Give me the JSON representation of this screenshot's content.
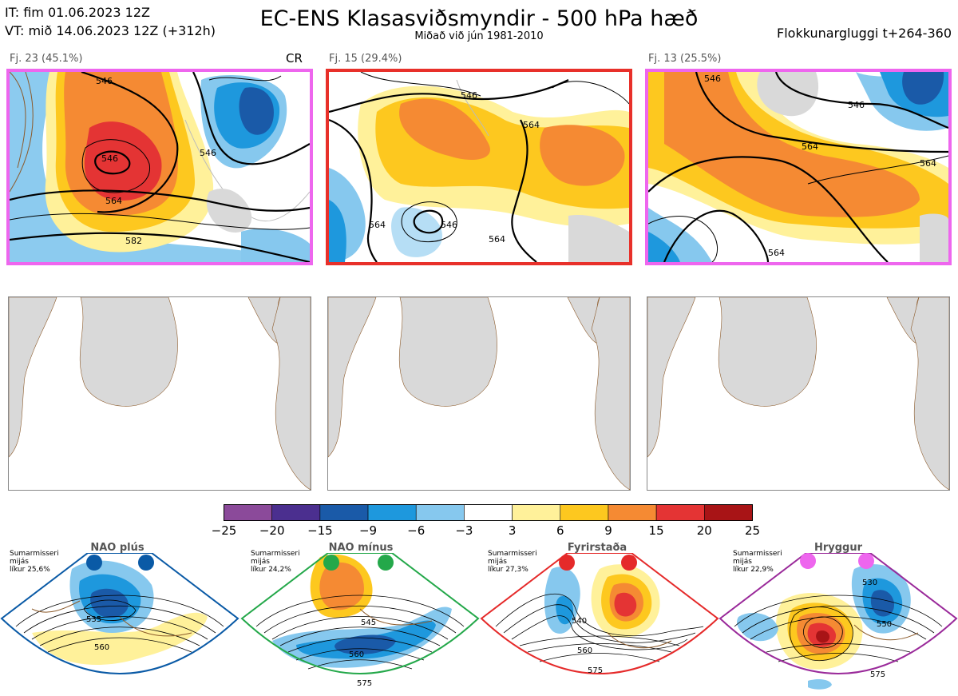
{
  "header": {
    "it_line": "IT: fim 01.06.2023 12Z",
    "vt_line": "VT: mið 14.06.2023 12Z  (+312h)",
    "title": "EC-ENS Klasasviðsmyndir - 500 hPa hæð",
    "subtitle": "Miðað við jún 1981-2010",
    "window": "Flokkunargluggi t+264-360"
  },
  "clusters": [
    {
      "label": "Fj. 23 (45.1%)",
      "tag": "CR",
      "border_color": "#ee66ee",
      "contours": [
        "546",
        "546",
        "546",
        "564",
        "582"
      ]
    },
    {
      "label": "Fj. 15 (29.4%)",
      "tag": "",
      "border_color": "#e8302a",
      "contours": [
        "546",
        "546",
        "564",
        "564",
        "564"
      ]
    },
    {
      "label": "Fj. 13 (25.5%)",
      "tag": "",
      "border_color": "#ee66ee",
      "contours": [
        "546",
        "546",
        "564",
        "564",
        "564"
      ]
    }
  ],
  "colorbar": {
    "colors": [
      "#8b4a9a",
      "#4b2f8f",
      "#1a5aa8",
      "#1e98dd",
      "#86c8ee",
      "#ffffff",
      "#fff19a",
      "#fdc81f",
      "#f58a33",
      "#e43434",
      "#a81416"
    ],
    "labels": [
      "−25",
      "−20",
      "−15",
      "−9",
      "−6",
      "−3",
      "3",
      "6",
      "9",
      "15",
      "20",
      "25"
    ]
  },
  "regimes": [
    {
      "name": "NAO plús",
      "info1": "Sumarmisseri",
      "info2": "mijás",
      "info3": "líkur 25,6%",
      "color": "#0a5aa6",
      "contour_a": "535",
      "contour_b": "560"
    },
    {
      "name": "NAO mínus",
      "info1": "Sumarmisseri",
      "info2": "mijás",
      "info3": "líkur 24,2%",
      "color": "#24a84a",
      "contour_a": "545",
      "contour_b": "560",
      "contour_c": "575"
    },
    {
      "name": "Fyrirstaða",
      "info1": "Sumarmisseri",
      "info2": "mijás",
      "info3": "líkur 27,3%",
      "color": "#e52a2a",
      "contour_a": "540",
      "contour_b": "560",
      "contour_c": "575"
    },
    {
      "name": "Hryggur",
      "info1": "Sumarmisseri",
      "info2": "mijás",
      "info3": "líkur 22,9%",
      "color": "#9a2a9a",
      "contour_a": "530",
      "contour_b": "550",
      "contour_c": "575"
    }
  ]
}
